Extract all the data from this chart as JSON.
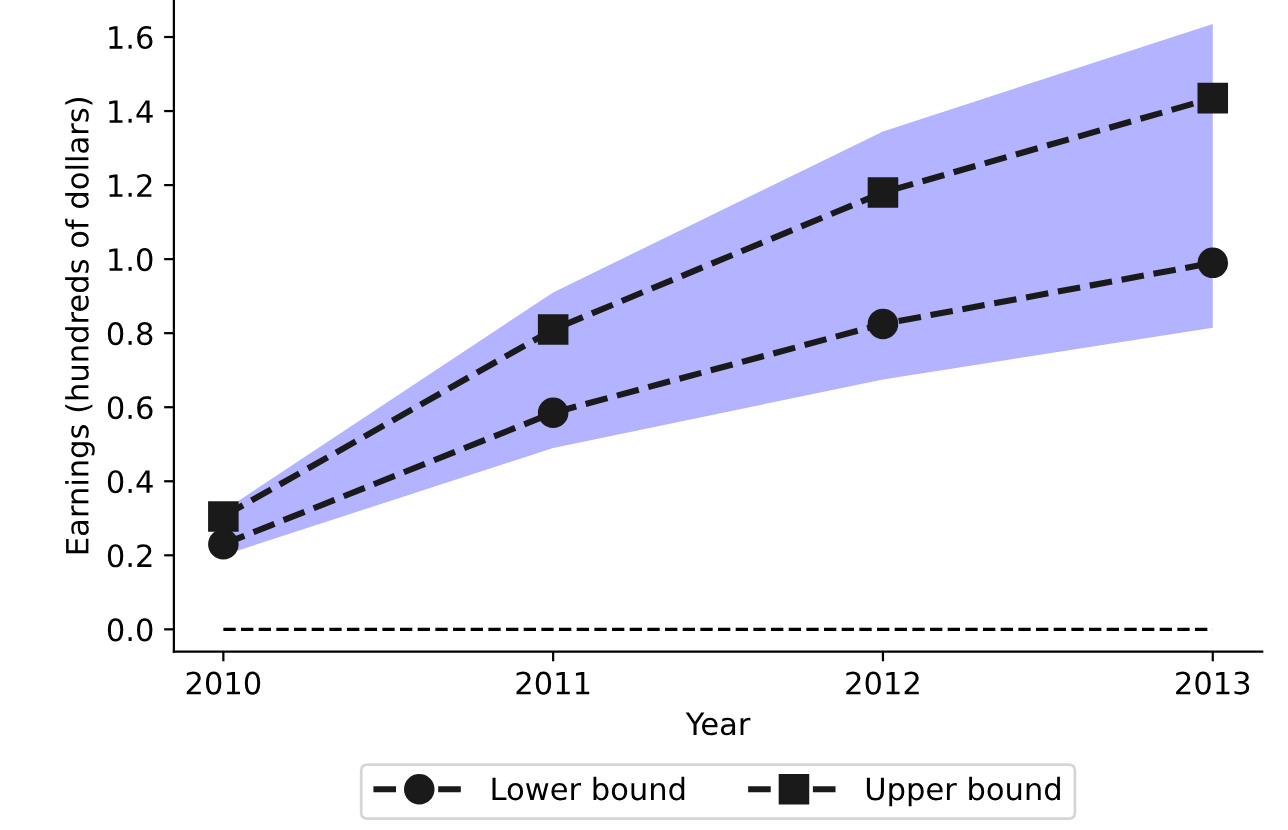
{
  "chart_data": {
    "type": "line",
    "xlabel": "Year",
    "ylabel": "Earnings (hundreds of dollars)",
    "x": [
      2010,
      2011,
      2012,
      2013
    ],
    "series": [
      {
        "name": "Lower bound",
        "color": "#1a1a1a",
        "values": [
          0.23,
          0.585,
          0.825,
          0.99
        ],
        "marker": "circle",
        "line_style": "dashed",
        "lower": [
          0.2,
          0.49,
          0.675,
          0.815
        ],
        "upper": [
          0.32,
          0.91,
          1.345,
          1.635
        ]
      },
      {
        "name": "Upper bound",
        "color": "#1a1a1a",
        "values": [
          0.305,
          0.81,
          1.18,
          1.435
        ],
        "marker": "square",
        "line_style": "dashed"
      }
    ],
    "ref_lines": [
      {
        "axis": "y",
        "value": 0,
        "color": "#000000",
        "line_style": "dashed"
      }
    ],
    "xlim": [
      2009.85,
      2013.15
    ],
    "ylim": [
      -0.06,
      1.7
    ],
    "xticks": [
      2010,
      2011,
      2012,
      2013
    ],
    "yticks": [
      {
        "value": 0,
        "label": "0.0"
      },
      {
        "value": 0.2,
        "label": "0.2"
      },
      {
        "value": 0.4,
        "label": "0.4"
      },
      {
        "value": 0.6,
        "label": "0.6"
      },
      {
        "value": 0.8,
        "label": "0.8"
      },
      {
        "value": 1.0,
        "label": "1.0"
      },
      {
        "value": 1.2,
        "label": "1.2"
      },
      {
        "value": 1.4,
        "label": "1.4"
      },
      {
        "value": 1.6,
        "label": "1.6"
      }
    ],
    "grid": false,
    "legend": "bottom"
  }
}
